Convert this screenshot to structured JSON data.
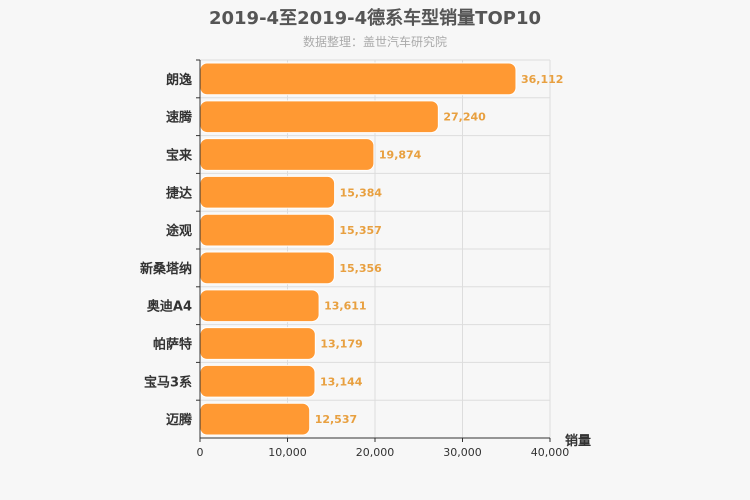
{
  "chart_data": {
    "type": "bar",
    "orientation": "horizontal",
    "title": "2019-4至2019-4德系车型销量TOP10",
    "subtitle": "数据整理：盖世汽车研究院",
    "xlabel": "销量",
    "ylabel": "",
    "categories": [
      "朗逸",
      "速腾",
      "宝来",
      "捷达",
      "途观",
      "新桑塔纳",
      "奥迪A4",
      "帕萨特",
      "宝马3系",
      "迈腾"
    ],
    "values": [
      36112,
      27240,
      19874,
      15384,
      15357,
      15356,
      13611,
      13179,
      13144,
      12537
    ],
    "value_labels": [
      "36,112",
      "27,240",
      "19,874",
      "15,384",
      "15,357",
      "15,356",
      "13,611",
      "13,179",
      "13,144",
      "12,537"
    ],
    "xlim": [
      0,
      40000
    ],
    "xticks": [
      0,
      10000,
      20000,
      30000,
      40000
    ],
    "xtick_labels": [
      "0",
      "10,000",
      "20,000",
      "30,000",
      "40,000"
    ],
    "grid": true,
    "legend": "none",
    "colors": {
      "bar": "#ff9933",
      "bar_stroke": "#ffffff",
      "value_label": "#e8a040",
      "grid": "#dddddd",
      "axis": "#333333"
    }
  }
}
